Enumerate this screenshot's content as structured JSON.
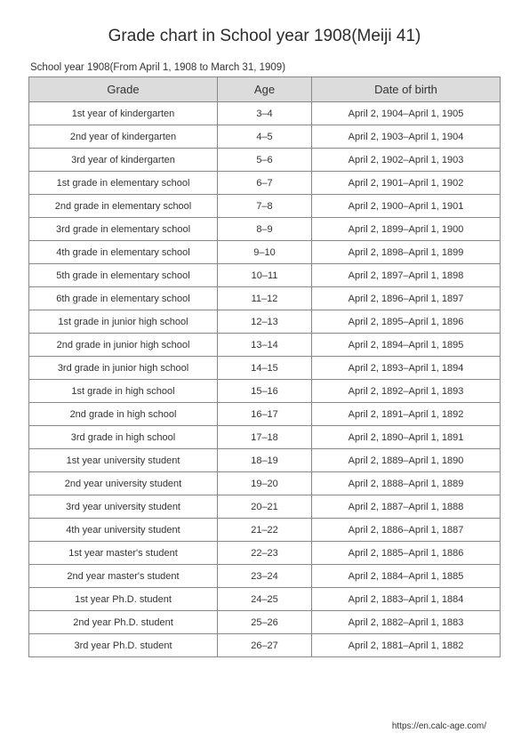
{
  "title": "Grade chart in School year 1908(Meiji 41)",
  "subtitle": "School year 1908(From April 1, 1908 to March 31, 1909)",
  "footer_url": "https://en.calc-age.com/",
  "table": {
    "columns": [
      "Grade",
      "Age",
      "Date of birth"
    ],
    "rows": [
      [
        "1st year of kindergarten",
        "3–4",
        "April 2, 1904–April 1, 1905"
      ],
      [
        "2nd year of kindergarten",
        "4–5",
        "April 2, 1903–April 1, 1904"
      ],
      [
        "3rd year of kindergarten",
        "5–6",
        "April 2, 1902–April 1, 1903"
      ],
      [
        "1st grade in elementary school",
        "6–7",
        "April 2, 1901–April 1, 1902"
      ],
      [
        "2nd grade in elementary school",
        "7–8",
        "April 2, 1900–April 1, 1901"
      ],
      [
        "3rd grade in elementary school",
        "8–9",
        "April 2, 1899–April 1, 1900"
      ],
      [
        "4th grade in elementary school",
        "9–10",
        "April 2, 1898–April 1, 1899"
      ],
      [
        "5th grade in elementary school",
        "10–11",
        "April 2, 1897–April 1, 1898"
      ],
      [
        "6th grade in elementary school",
        "11–12",
        "April 2, 1896–April 1, 1897"
      ],
      [
        "1st grade in junior high school",
        "12–13",
        "April 2, 1895–April 1, 1896"
      ],
      [
        "2nd grade in junior high school",
        "13–14",
        "April 2, 1894–April 1, 1895"
      ],
      [
        "3rd grade in junior high school",
        "14–15",
        "April 2, 1893–April 1, 1894"
      ],
      [
        "1st grade in high school",
        "15–16",
        "April 2, 1892–April 1, 1893"
      ],
      [
        "2nd grade in high school",
        "16–17",
        "April 2, 1891–April 1, 1892"
      ],
      [
        "3rd grade in high school",
        "17–18",
        "April 2, 1890–April 1, 1891"
      ],
      [
        "1st year university student",
        "18–19",
        "April 2, 1889–April 1, 1890"
      ],
      [
        "2nd year university student",
        "19–20",
        "April 2, 1888–April 1, 1889"
      ],
      [
        "3rd year university student",
        "20–21",
        "April 2, 1887–April 1, 1888"
      ],
      [
        "4th year university student",
        "21–22",
        "April 2, 1886–April 1, 1887"
      ],
      [
        "1st year master's student",
        "22–23",
        "April 2, 1885–April 1, 1886"
      ],
      [
        "2nd year master's student",
        "23–24",
        "April 2, 1884–April 1, 1885"
      ],
      [
        "1st year Ph.D. student",
        "24–25",
        "April 2, 1883–April 1, 1884"
      ],
      [
        "2nd year Ph.D. student",
        "25–26",
        "April 2, 1882–April 1, 1883"
      ],
      [
        "3rd year Ph.D. student",
        "26–27",
        "April 2, 1881–April 1, 1882"
      ]
    ]
  },
  "style": {
    "page_bg": "#ffffff",
    "text_color": "#333333",
    "title_fontsize": 19,
    "subtitle_fontsize": 11.5,
    "header_bg": "#dcdcdc",
    "header_fontsize": 13,
    "cell_fontsize": 11,
    "border_color": "#888888",
    "col_widths": [
      "40%",
      "20%",
      "40%"
    ],
    "footer_fontsize": 10
  }
}
